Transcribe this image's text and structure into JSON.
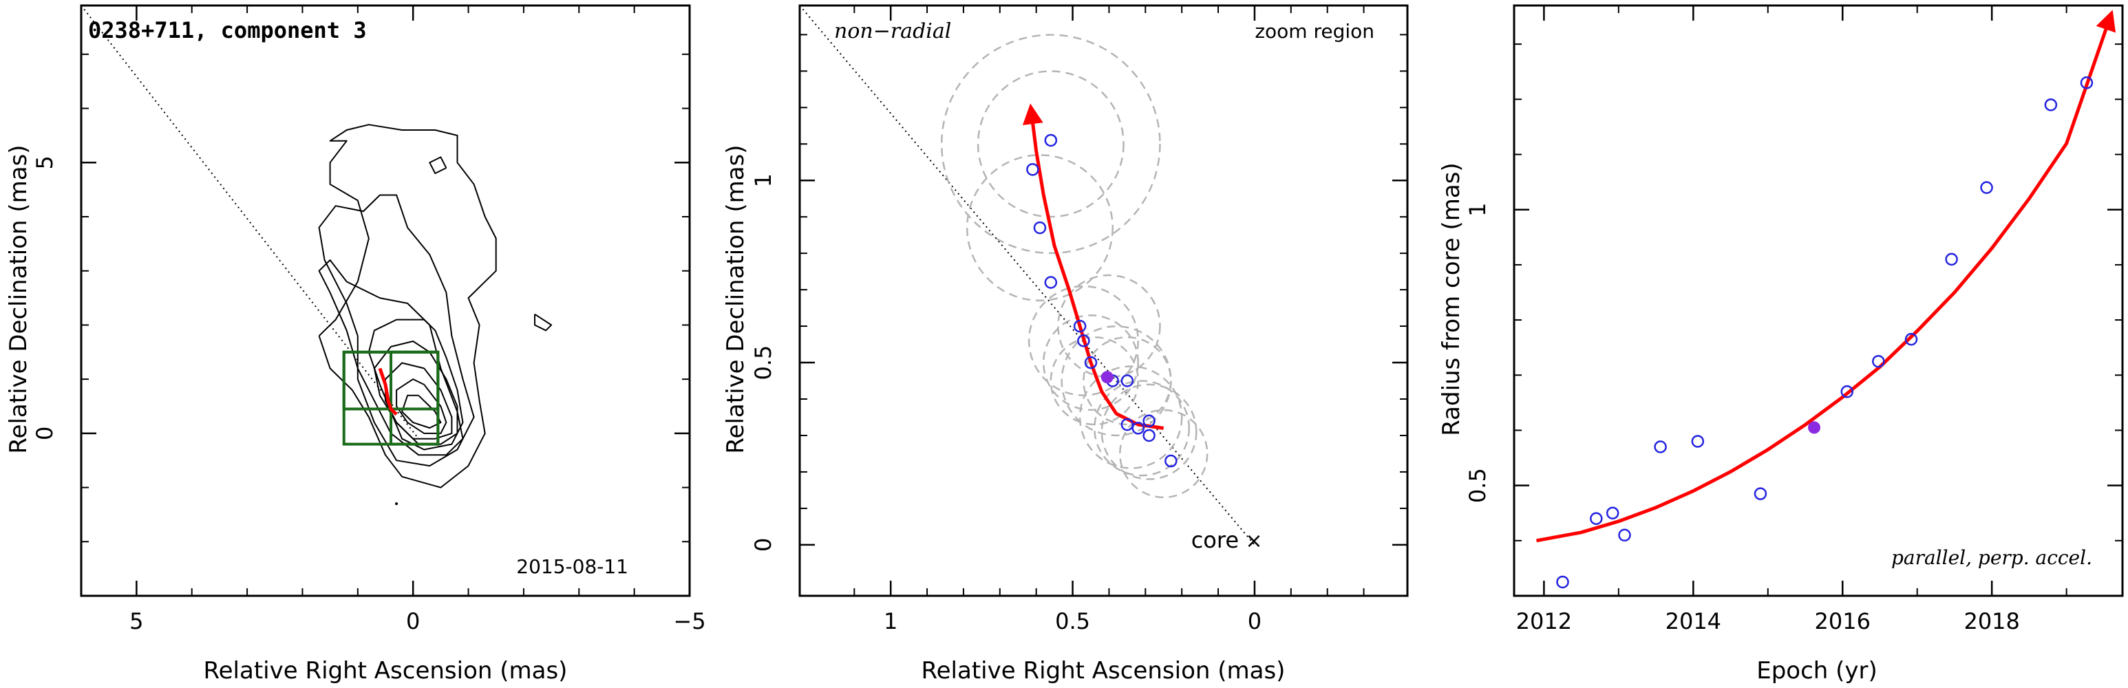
{
  "chart_data": [
    {
      "type": "contour-map",
      "title": "0238+711, component 3",
      "date_label": "2015-08-11",
      "xlabel": "Relative Right Ascension (mas)",
      "ylabel": "Relative Declination (mas)",
      "xlim": [
        6,
        -5
      ],
      "ylim": [
        -3,
        7.9
      ],
      "xticks": [
        5,
        0,
        -5
      ],
      "yticks": [
        0,
        5
      ],
      "xtick_labels": [
        "5",
        "0",
        "−5"
      ],
      "ytick_labels": [
        "0",
        "5"
      ],
      "line_color": "#000000",
      "box_color": "#1a6b1a",
      "track_color": "#ff0000",
      "contours": [
        [
          [
            1.7,
            1.8
          ],
          [
            1.4,
            2.1
          ],
          [
            1.0,
            2.8
          ],
          [
            0.8,
            3.6
          ],
          [
            1.0,
            4.3
          ],
          [
            1.5,
            4.6
          ],
          [
            1.5,
            5.0
          ],
          [
            1.2,
            5.4
          ],
          [
            1.5,
            5.4
          ],
          [
            1.2,
            5.6
          ],
          [
            0.8,
            5.7
          ],
          [
            0.2,
            5.6
          ],
          [
            -0.4,
            5.6
          ],
          [
            -0.8,
            5.5
          ],
          [
            -0.8,
            5.0
          ],
          [
            -1.1,
            4.6
          ],
          [
            -1.3,
            4.0
          ],
          [
            -1.5,
            3.6
          ],
          [
            -1.5,
            3.0
          ],
          [
            -1.0,
            2.5
          ],
          [
            -1.2,
            2.0
          ],
          [
            -1.1,
            1.3
          ],
          [
            -1.2,
            0.6
          ],
          [
            -1.3,
            0.0
          ],
          [
            -1.0,
            -0.6
          ],
          [
            -0.5,
            -1.0
          ],
          [
            0.2,
            -0.8
          ],
          [
            0.5,
            -0.4
          ],
          [
            0.8,
            0.3
          ],
          [
            1.1,
            0.8
          ],
          [
            1.5,
            1.2
          ],
          [
            1.7,
            1.8
          ]
        ],
        [
          [
            1.0,
            1.8
          ],
          [
            1.2,
            2.4
          ],
          [
            1.6,
            3.2
          ],
          [
            1.7,
            3.8
          ],
          [
            1.4,
            4.2
          ],
          [
            0.9,
            4.1
          ],
          [
            0.6,
            4.4
          ],
          [
            0.3,
            4.4
          ],
          [
            0.1,
            3.8
          ],
          [
            -0.3,
            3.3
          ],
          [
            -0.6,
            2.6
          ],
          [
            -0.7,
            1.8
          ],
          [
            -0.9,
            1.0
          ],
          [
            -1.1,
            0.3
          ],
          [
            -0.8,
            -0.3
          ],
          [
            -0.3,
            -0.6
          ],
          [
            0.3,
            -0.5
          ],
          [
            0.7,
            0.2
          ],
          [
            1.0,
            1.0
          ],
          [
            1.0,
            1.8
          ]
        ],
        [
          [
            1.5,
            2.6
          ],
          [
            1.7,
            3.0
          ],
          [
            1.5,
            3.2
          ],
          [
            1.2,
            2.8
          ],
          [
            0.6,
            2.5
          ],
          [
            0.1,
            2.4
          ],
          [
            -0.3,
            2.0
          ],
          [
            -0.5,
            1.2
          ],
          [
            -0.8,
            0.4
          ],
          [
            -0.9,
            -0.1
          ],
          [
            -0.6,
            -0.4
          ],
          [
            -0.1,
            -0.4
          ],
          [
            0.4,
            0.0
          ],
          [
            0.7,
            0.6
          ],
          [
            1.0,
            1.2
          ],
          [
            1.2,
            1.9
          ],
          [
            1.5,
            2.6
          ]
        ],
        [
          [
            -0.4,
            1.9
          ],
          [
            -0.6,
            1.4
          ],
          [
            -0.8,
            0.8
          ],
          [
            -0.9,
            0.2
          ],
          [
            -0.7,
            -0.2
          ],
          [
            -0.2,
            -0.3
          ],
          [
            0.2,
            -0.1
          ],
          [
            0.4,
            0.4
          ],
          [
            0.6,
            0.9
          ],
          [
            0.8,
            1.5
          ],
          [
            0.7,
            1.9
          ],
          [
            0.3,
            2.1
          ],
          [
            -0.2,
            2.1
          ],
          [
            -0.4,
            1.9
          ]
        ],
        [
          [
            -0.3,
            1.5
          ],
          [
            -0.6,
            1.0
          ],
          [
            -0.8,
            0.5
          ],
          [
            -0.8,
            0.0
          ],
          [
            -0.5,
            -0.2
          ],
          [
            -0.1,
            -0.2
          ],
          [
            0.3,
            0.2
          ],
          [
            0.6,
            0.7
          ],
          [
            0.7,
            1.2
          ],
          [
            0.4,
            1.6
          ],
          [
            0.0,
            1.7
          ],
          [
            -0.3,
            1.5
          ]
        ],
        [
          [
            -0.2,
            1.2
          ],
          [
            -0.5,
            0.8
          ],
          [
            -0.7,
            0.3
          ],
          [
            -0.7,
            0.0
          ],
          [
            -0.4,
            -0.1
          ],
          [
            0.0,
            -0.1
          ],
          [
            0.3,
            0.2
          ],
          [
            0.5,
            0.6
          ],
          [
            0.5,
            1.0
          ],
          [
            0.2,
            1.3
          ],
          [
            -0.2,
            1.2
          ]
        ],
        [
          [
            -0.2,
            0.9
          ],
          [
            -0.5,
            0.5
          ],
          [
            -0.6,
            0.2
          ],
          [
            -0.5,
            0.0
          ],
          [
            -0.2,
            0.0
          ],
          [
            0.1,
            0.2
          ],
          [
            0.3,
            0.5
          ],
          [
            0.3,
            0.8
          ],
          [
            0.0,
            1.0
          ],
          [
            -0.2,
            0.9
          ]
        ],
        [
          [
            -0.1,
            0.7
          ],
          [
            -0.4,
            0.4
          ],
          [
            -0.5,
            0.2
          ],
          [
            -0.3,
            0.1
          ],
          [
            0.0,
            0.2
          ],
          [
            0.2,
            0.4
          ],
          [
            0.1,
            0.7
          ],
          [
            -0.1,
            0.7
          ]
        ],
        [
          [
            -0.6,
            4.9
          ],
          [
            -0.4,
            4.8
          ],
          [
            -0.3,
            5.0
          ],
          [
            -0.5,
            5.1
          ],
          [
            -0.6,
            4.9
          ]
        ],
        [
          [
            -2.2,
            2.2
          ],
          [
            -2.5,
            2.0
          ],
          [
            -2.4,
            1.9
          ],
          [
            -2.2,
            2.0
          ],
          [
            -2.2,
            2.2
          ]
        ]
      ],
      "boxes": [
        {
          "x": [
            1.25,
            -0.45
          ],
          "y": [
            -0.2,
            1.5
          ]
        },
        {
          "x": [
            0.4,
            -0.45
          ],
          "y": [
            -0.2,
            1.5
          ]
        },
        {
          "x": [
            1.25,
            -0.45
          ],
          "y": [
            0.45,
            1.5
          ]
        }
      ],
      "track": [
        [
          0.6,
          1.2
        ],
        [
          0.5,
          0.9
        ],
        [
          0.45,
          0.6
        ],
        [
          0.4,
          0.45
        ],
        [
          0.3,
          0.35
        ]
      ],
      "extra_dot": {
        "x": 0.3,
        "y": -1.3
      },
      "radial_line": [
        [
          6.0,
          7.9
        ],
        [
          -0.1,
          -0.1
        ]
      ]
    },
    {
      "type": "scatter",
      "label_left": "non−radial",
      "label_right": "zoom region",
      "core_label": "core",
      "core_marker": "×",
      "xlabel": "Relative Right Ascension (mas)",
      "ylabel": "Relative Declination (mas)",
      "xlim": [
        1.25,
        -0.42
      ],
      "ylim": [
        -0.14,
        1.48
      ],
      "xticks": [
        1,
        0.5,
        0
      ],
      "yticks": [
        0,
        0.5,
        1
      ],
      "xtick_labels": [
        "1",
        "0.5",
        "0"
      ],
      "ytick_labels": [
        "0",
        "0.5",
        "1"
      ],
      "point_color": "#2323e0",
      "highlight_color": "#8a2be2",
      "circle_color": "#b4b4b4",
      "track_color": "#ff0000",
      "points": [
        {
          "x": 0.61,
          "y": 1.03
        },
        {
          "x": 0.56,
          "y": 1.11
        },
        {
          "x": 0.59,
          "y": 0.87
        },
        {
          "x": 0.56,
          "y": 0.72
        },
        {
          "x": 0.48,
          "y": 0.6
        },
        {
          "x": 0.47,
          "y": 0.56
        },
        {
          "x": 0.45,
          "y": 0.5
        },
        {
          "x": 0.39,
          "y": 0.45
        },
        {
          "x": 0.35,
          "y": 0.45
        },
        {
          "x": 0.35,
          "y": 0.33
        },
        {
          "x": 0.32,
          "y": 0.32
        },
        {
          "x": 0.29,
          "y": 0.34
        },
        {
          "x": 0.29,
          "y": 0.3
        },
        {
          "x": 0.23,
          "y": 0.23
        }
      ],
      "highlight": {
        "x": 0.405,
        "y": 0.46
      },
      "circles": [
        {
          "x": 0.56,
          "y": 1.1,
          "r": 0.3
        },
        {
          "x": 0.56,
          "y": 1.1,
          "r": 0.2
        },
        {
          "x": 0.59,
          "y": 0.87,
          "r": 0.2
        },
        {
          "x": 0.47,
          "y": 0.56,
          "r": 0.15
        },
        {
          "x": 0.45,
          "y": 0.5,
          "r": 0.13
        },
        {
          "x": 0.38,
          "y": 0.45,
          "r": 0.15
        },
        {
          "x": 0.35,
          "y": 0.45,
          "r": 0.12
        },
        {
          "x": 0.34,
          "y": 0.35,
          "r": 0.14
        },
        {
          "x": 0.31,
          "y": 0.32,
          "r": 0.13
        },
        {
          "x": 0.29,
          "y": 0.31,
          "r": 0.13
        },
        {
          "x": 0.25,
          "y": 0.25,
          "r": 0.12
        },
        {
          "x": 0.44,
          "y": 0.45,
          "r": 0.12
        },
        {
          "x": 0.4,
          "y": 0.6,
          "r": 0.14
        }
      ],
      "track": [
        [
          0.25,
          0.32
        ],
        [
          0.32,
          0.33
        ],
        [
          0.38,
          0.36
        ],
        [
          0.42,
          0.42
        ],
        [
          0.45,
          0.5
        ],
        [
          0.48,
          0.6
        ],
        [
          0.51,
          0.7
        ],
        [
          0.55,
          0.82
        ],
        [
          0.58,
          0.96
        ],
        [
          0.6,
          1.08
        ],
        [
          0.615,
          1.2
        ]
      ],
      "radial_line": [
        [
          1.25,
          1.48
        ],
        [
          0.0,
          0.0
        ]
      ]
    },
    {
      "type": "scatter",
      "label": "parallel, perp. accel.",
      "xlabel": "Epoch (yr)",
      "ylabel": "Radius from core (mas)",
      "xlim": [
        2011.6,
        2019.75
      ],
      "ylim": [
        0.3,
        1.37
      ],
      "xticks": [
        2012,
        2014,
        2016,
        2018
      ],
      "yticks": [
        0.5,
        1
      ],
      "xtick_labels": [
        "2012",
        "2014",
        "2016",
        "2018"
      ],
      "ytick_labels": [
        "0.5",
        "1"
      ],
      "point_color": "#2323e0",
      "highlight_color": "#8a2be2",
      "fit_color": "#ff0000",
      "x": [
        2012.25,
        2012.7,
        2012.92,
        2013.08,
        2013.56,
        2014.06,
        2014.9,
        2016.06,
        2016.48,
        2016.92,
        2017.46,
        2017.93,
        2018.79,
        2019.27
      ],
      "y": [
        0.325,
        0.44,
        0.45,
        0.41,
        0.57,
        0.58,
        0.485,
        0.67,
        0.725,
        0.765,
        0.91,
        1.04,
        1.19,
        1.23
      ],
      "highlight": {
        "x": 2015.62,
        "y": 0.605
      },
      "fit": [
        [
          2011.9,
          0.4
        ],
        [
          2012.5,
          0.415
        ],
        [
          2013.0,
          0.435
        ],
        [
          2013.5,
          0.46
        ],
        [
          2014.0,
          0.49
        ],
        [
          2014.5,
          0.525
        ],
        [
          2015.0,
          0.565
        ],
        [
          2015.5,
          0.61
        ],
        [
          2016.0,
          0.66
        ],
        [
          2016.5,
          0.715
        ],
        [
          2017.0,
          0.78
        ],
        [
          2017.5,
          0.85
        ],
        [
          2018.0,
          0.93
        ],
        [
          2018.5,
          1.02
        ],
        [
          2019.0,
          1.12
        ],
        [
          2019.6,
          1.355
        ]
      ]
    }
  ]
}
